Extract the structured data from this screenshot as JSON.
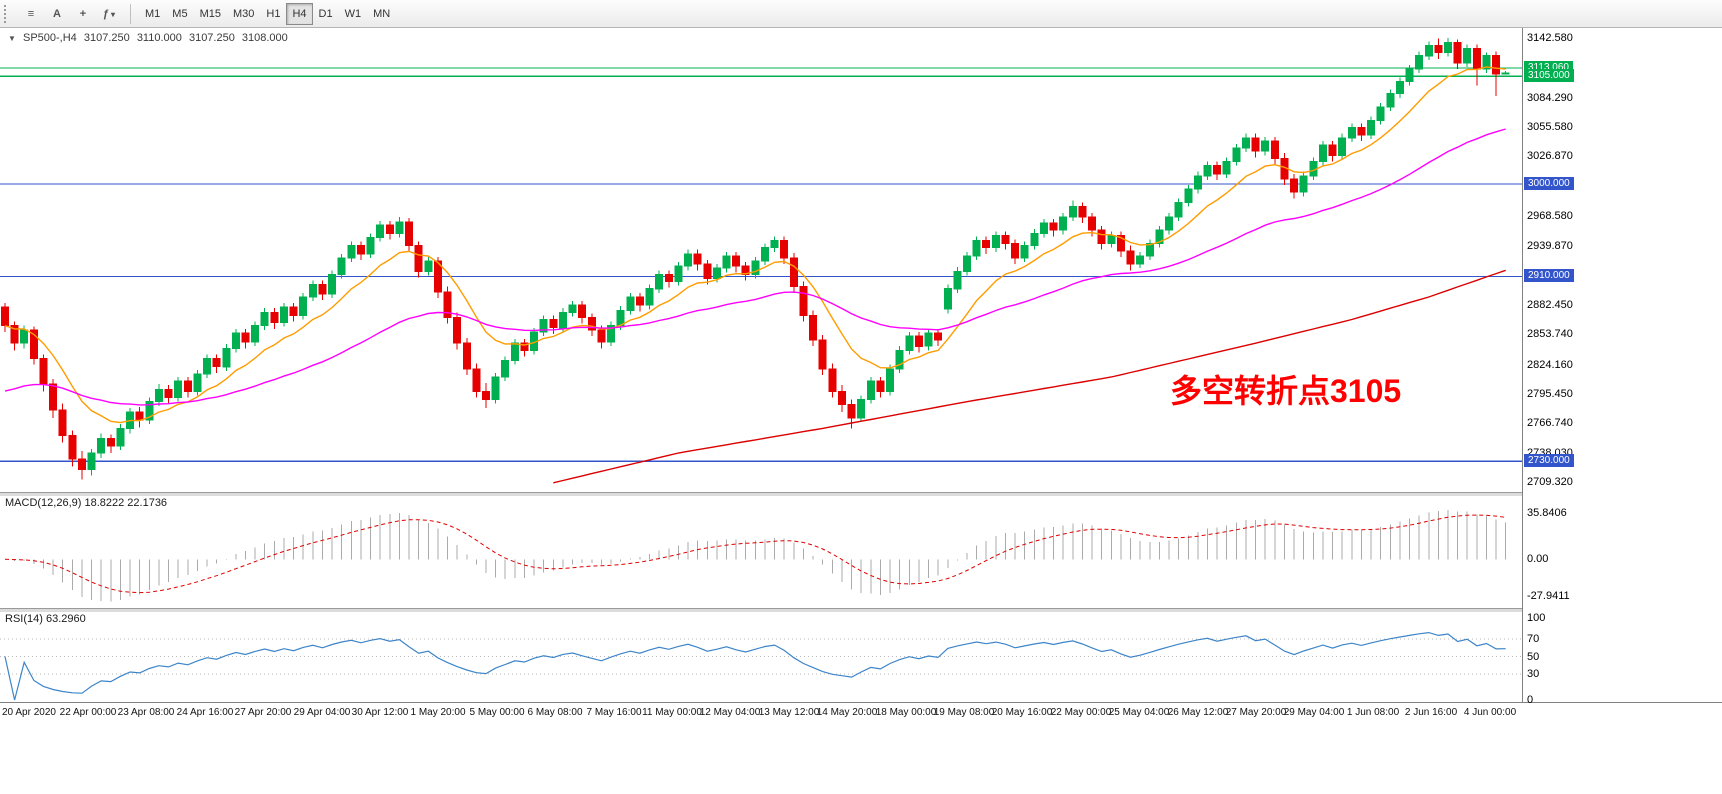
{
  "toolbar": {
    "icons": [
      {
        "name": "chart-list-icon",
        "glyph": "≡"
      },
      {
        "name": "text-tool-icon",
        "glyph": "A"
      },
      {
        "name": "crosshair-icon",
        "glyph": "+"
      },
      {
        "name": "indicators-icon",
        "glyph": "ƒ",
        "caret": "▾"
      }
    ],
    "timeframes": [
      "M1",
      "M5",
      "M15",
      "M30",
      "H1",
      "H4",
      "D1",
      "W1",
      "MN"
    ],
    "active_timeframe": "H4"
  },
  "quote_header": {
    "collapse_glyph": "▼",
    "symbol": "SP500-,H4",
    "open": "3107.250",
    "high": "3110.000",
    "low": "3107.250",
    "close": "3108.000"
  },
  "annotation": {
    "text": "多空转折点3105",
    "color": "#ff0000"
  },
  "indicator_labels": {
    "macd": "MACD(12,26,9) 18.8222 22.1736",
    "rsi": "RSI(14) 63.2960"
  },
  "price_scale": {
    "grid_labels": [
      "3142.580",
      "3084.290",
      "3055.580",
      "3026.870",
      "2968.580",
      "2939.870",
      "2882.450",
      "2853.740",
      "2824.160",
      "2795.450",
      "2766.740",
      "2738.030",
      "2709.320"
    ],
    "line_badges": [
      {
        "label": "3113.060",
        "price": 3113.06,
        "color": "#00b050"
      },
      {
        "label": "3105.000",
        "price": 3105.0,
        "color": "#00b050"
      },
      {
        "label": "3000.000",
        "price": 3000.0,
        "color": "#3355cc"
      },
      {
        "label": "2910.000",
        "price": 2910.0,
        "color": "#3355cc"
      },
      {
        "label": "2730.000",
        "price": 2730.0,
        "color": "#3355cc"
      }
    ]
  },
  "time_axis": {
    "labels": [
      "20 Apr 2020",
      "22 Apr 00:00",
      "23 Apr 08:00",
      "24 Apr 16:00",
      "27 Apr 20:00",
      "29 Apr 04:00",
      "30 Apr 12:00",
      "1 May 20:00",
      "5 May 00:00",
      "6 May 08:00",
      "7 May 16:00",
      "11 May 00:00",
      "12 May 04:00",
      "13 May 12:00",
      "14 May 20:00",
      "18 May 00:00",
      "19 May 08:00",
      "20 May 16:00",
      "22 May 00:00",
      "25 May 04:00",
      "26 May 12:00",
      "27 May 20:00",
      "29 May 04:00",
      "1 Jun 08:00",
      "2 Jun 16:00",
      "4 Jun 00:00"
    ]
  },
  "chart_data": {
    "type": "candlestick",
    "title": "SP500-,H4",
    "timeframe": "H4",
    "ylim": [
      2700,
      3152
    ],
    "up_color": "#00b050",
    "down_color": "#e60000",
    "hlines": [
      {
        "price": 3113.06,
        "color": "#00b050"
      },
      {
        "price": 3105.0,
        "color": "#00b050"
      },
      {
        "price": 3000.0,
        "color": "#3355cc"
      },
      {
        "price": 2910.0,
        "color": "#3355cc"
      },
      {
        "price": 2730.0,
        "color": "#3355cc"
      }
    ],
    "moving_averages": [
      {
        "name": "ma-fast-orange",
        "color": "#ff9c00",
        "period": 10
      },
      {
        "name": "ma-mid-magenta",
        "color": "#ff00ff",
        "period": 40,
        "seed": 2795
      },
      {
        "name": "ma-slow-red",
        "color": "#dc0000",
        "anchors": [
          [
            57,
            2709
          ],
          [
            70,
            2738
          ],
          [
            85,
            2762
          ],
          [
            100,
            2788
          ],
          [
            115,
            2812
          ],
          [
            130,
            2845
          ],
          [
            140,
            2868
          ],
          [
            148,
            2890
          ],
          [
            156,
            2916
          ]
        ]
      }
    ],
    "candles": [
      [
        2880,
        2884,
        2856,
        2862
      ],
      [
        2862,
        2866,
        2838,
        2845
      ],
      [
        2845,
        2862,
        2840,
        2858
      ],
      [
        2858,
        2861,
        2824,
        2830
      ],
      [
        2830,
        2834,
        2798,
        2805
      ],
      [
        2805,
        2810,
        2772,
        2780
      ],
      [
        2780,
        2786,
        2748,
        2755
      ],
      [
        2755,
        2760,
        2725,
        2732
      ],
      [
        2732,
        2740,
        2712,
        2722
      ],
      [
        2722,
        2742,
        2716,
        2738
      ],
      [
        2738,
        2757,
        2733,
        2752
      ],
      [
        2752,
        2756,
        2738,
        2745
      ],
      [
        2745,
        2766,
        2741,
        2762
      ],
      [
        2762,
        2782,
        2757,
        2778
      ],
      [
        2778,
        2783,
        2763,
        2770
      ],
      [
        2770,
        2792,
        2766,
        2788
      ],
      [
        2788,
        2805,
        2784,
        2800
      ],
      [
        2800,
        2804,
        2786,
        2792
      ],
      [
        2792,
        2812,
        2788,
        2808
      ],
      [
        2808,
        2812,
        2792,
        2798
      ],
      [
        2798,
        2819,
        2794,
        2815
      ],
      [
        2815,
        2834,
        2811,
        2830
      ],
      [
        2830,
        2834,
        2816,
        2822
      ],
      [
        2822,
        2844,
        2818,
        2840
      ],
      [
        2840,
        2859,
        2836,
        2855
      ],
      [
        2855,
        2859,
        2840,
        2846
      ],
      [
        2846,
        2866,
        2842,
        2862
      ],
      [
        2862,
        2879,
        2858,
        2875
      ],
      [
        2875,
        2879,
        2859,
        2865
      ],
      [
        2865,
        2884,
        2861,
        2880
      ],
      [
        2880,
        2884,
        2866,
        2872
      ],
      [
        2872,
        2894,
        2868,
        2890
      ],
      [
        2890,
        2906,
        2886,
        2902
      ],
      [
        2902,
        2906,
        2887,
        2893
      ],
      [
        2893,
        2916,
        2889,
        2912
      ],
      [
        2912,
        2932,
        2908,
        2928
      ],
      [
        2928,
        2944,
        2924,
        2940
      ],
      [
        2940,
        2944,
        2926,
        2932
      ],
      [
        2932,
        2952,
        2928,
        2948
      ],
      [
        2948,
        2964,
        2944,
        2960
      ],
      [
        2960,
        2964,
        2946,
        2952
      ],
      [
        2952,
        2968,
        2948,
        2963
      ],
      [
        2963,
        2967,
        2934,
        2940
      ],
      [
        2940,
        2944,
        2909,
        2915
      ],
      [
        2915,
        2929,
        2911,
        2925
      ],
      [
        2925,
        2929,
        2889,
        2895
      ],
      [
        2895,
        2900,
        2864,
        2870
      ],
      [
        2870,
        2875,
        2839,
        2845
      ],
      [
        2845,
        2850,
        2814,
        2820
      ],
      [
        2820,
        2825,
        2792,
        2798
      ],
      [
        2798,
        2806,
        2782,
        2790
      ],
      [
        2790,
        2816,
        2786,
        2812
      ],
      [
        2812,
        2832,
        2808,
        2828
      ],
      [
        2828,
        2849,
        2824,
        2845
      ],
      [
        2845,
        2849,
        2832,
        2838
      ],
      [
        2838,
        2860,
        2834,
        2856
      ],
      [
        2856,
        2872,
        2852,
        2868
      ],
      [
        2868,
        2872,
        2854,
        2860
      ],
      [
        2860,
        2879,
        2856,
        2875
      ],
      [
        2875,
        2886,
        2871,
        2882
      ],
      [
        2882,
        2886,
        2864,
        2870
      ],
      [
        2870,
        2874,
        2852,
        2858
      ],
      [
        2858,
        2862,
        2840,
        2846
      ],
      [
        2846,
        2866,
        2842,
        2862
      ],
      [
        2862,
        2881,
        2858,
        2877
      ],
      [
        2877,
        2894,
        2873,
        2890
      ],
      [
        2890,
        2894,
        2876,
        2882
      ],
      [
        2882,
        2902,
        2878,
        2898
      ],
      [
        2898,
        2916,
        2894,
        2912
      ],
      [
        2912,
        2916,
        2899,
        2905
      ],
      [
        2905,
        2924,
        2901,
        2920
      ],
      [
        2920,
        2936,
        2916,
        2932
      ],
      [
        2932,
        2936,
        2916,
        2922
      ],
      [
        2922,
        2926,
        2902,
        2908
      ],
      [
        2908,
        2922,
        2904,
        2918
      ],
      [
        2918,
        2934,
        2914,
        2930
      ],
      [
        2930,
        2934,
        2914,
        2920
      ],
      [
        2920,
        2924,
        2906,
        2912
      ],
      [
        2912,
        2929,
        2908,
        2925
      ],
      [
        2925,
        2942,
        2921,
        2938
      ],
      [
        2938,
        2949,
        2934,
        2945
      ],
      [
        2945,
        2949,
        2922,
        2928
      ],
      [
        2928,
        2933,
        2894,
        2900
      ],
      [
        2900,
        2905,
        2866,
        2872
      ],
      [
        2872,
        2877,
        2842,
        2848
      ],
      [
        2848,
        2853,
        2814,
        2820
      ],
      [
        2820,
        2825,
        2792,
        2798
      ],
      [
        2798,
        2804,
        2778,
        2785
      ],
      [
        2785,
        2790,
        2762,
        2772
      ],
      [
        2772,
        2794,
        2768,
        2790
      ],
      [
        2790,
        2812,
        2786,
        2808
      ],
      [
        2808,
        2812,
        2792,
        2798
      ],
      [
        2798,
        2824,
        2794,
        2820
      ],
      [
        2820,
        2842,
        2816,
        2838
      ],
      [
        2838,
        2856,
        2834,
        2852
      ],
      [
        2852,
        2856,
        2836,
        2842
      ],
      [
        2842,
        2859,
        2838,
        2855
      ],
      [
        2855,
        2859,
        2842,
        2848
      ],
      [
        2878,
        2902,
        2874,
        2898
      ],
      [
        2898,
        2919,
        2894,
        2915
      ],
      [
        2915,
        2934,
        2911,
        2930
      ],
      [
        2930,
        2949,
        2926,
        2945
      ],
      [
        2945,
        2949,
        2932,
        2938
      ],
      [
        2938,
        2954,
        2934,
        2950
      ],
      [
        2950,
        2954,
        2936,
        2942
      ],
      [
        2942,
        2946,
        2922,
        2928
      ],
      [
        2928,
        2944,
        2924,
        2940
      ],
      [
        2940,
        2956,
        2936,
        2952
      ],
      [
        2952,
        2966,
        2948,
        2962
      ],
      [
        2962,
        2966,
        2949,
        2955
      ],
      [
        2955,
        2972,
        2951,
        2968
      ],
      [
        2968,
        2984,
        2964,
        2978
      ],
      [
        2978,
        2982,
        2962,
        2968
      ],
      [
        2968,
        2972,
        2949,
        2955
      ],
      [
        2955,
        2959,
        2936,
        2942
      ],
      [
        2942,
        2954,
        2938,
        2950
      ],
      [
        2950,
        2954,
        2929,
        2935
      ],
      [
        2935,
        2940,
        2916,
        2922
      ],
      [
        2922,
        2934,
        2918,
        2930
      ],
      [
        2930,
        2946,
        2926,
        2942
      ],
      [
        2942,
        2959,
        2938,
        2955
      ],
      [
        2955,
        2972,
        2951,
        2968
      ],
      [
        2968,
        2986,
        2964,
        2982
      ],
      [
        2982,
        2999,
        2978,
        2995
      ],
      [
        2995,
        3012,
        2991,
        3008
      ],
      [
        3008,
        3022,
        3004,
        3018
      ],
      [
        3018,
        3022,
        3004,
        3010
      ],
      [
        3010,
        3026,
        3006,
        3022
      ],
      [
        3022,
        3039,
        3018,
        3035
      ],
      [
        3035,
        3049,
        3031,
        3045
      ],
      [
        3045,
        3049,
        3026,
        3032
      ],
      [
        3032,
        3046,
        3028,
        3042
      ],
      [
        3042,
        3046,
        3019,
        3025
      ],
      [
        3025,
        3030,
        2999,
        3005
      ],
      [
        3005,
        3010,
        2986,
        2992
      ],
      [
        2992,
        3012,
        2988,
        3008
      ],
      [
        3008,
        3026,
        3004,
        3022
      ],
      [
        3022,
        3042,
        3018,
        3038
      ],
      [
        3038,
        3042,
        3022,
        3028
      ],
      [
        3028,
        3049,
        3024,
        3045
      ],
      [
        3045,
        3059,
        3041,
        3055
      ],
      [
        3055,
        3059,
        3042,
        3048
      ],
      [
        3048,
        3066,
        3044,
        3062
      ],
      [
        3062,
        3079,
        3058,
        3075
      ],
      [
        3075,
        3092,
        3071,
        3088
      ],
      [
        3088,
        3104,
        3084,
        3100
      ],
      [
        3100,
        3116,
        3096,
        3112
      ],
      [
        3112,
        3129,
        3108,
        3125
      ],
      [
        3125,
        3139,
        3121,
        3135
      ],
      [
        3135,
        3142,
        3122,
        3128
      ],
      [
        3128,
        3142.5,
        3124,
        3138
      ],
      [
        3138,
        3141,
        3112,
        3118
      ],
      [
        3118,
        3136,
        3114,
        3132
      ],
      [
        3132,
        3136,
        3096,
        3112
      ],
      [
        3112,
        3128,
        3108,
        3125
      ],
      [
        3125,
        3129,
        3086,
        3107
      ],
      [
        3107.25,
        3110,
        3107.25,
        3108
      ]
    ],
    "macd": {
      "params": [
        12,
        26,
        9
      ],
      "value": "18.8222",
      "signal": "22.1736",
      "range": [
        48,
        -36
      ],
      "hist_color": "#ababab",
      "signal_color": "#e00000",
      "scale_labels": [
        {
          "v": 35.8406,
          "label": "35.8406"
        },
        {
          "v": 0,
          "label": "0.00"
        },
        {
          "v": -27.9411,
          "label": "-27.9411"
        }
      ]
    },
    "rsi": {
      "period": 14,
      "value": "63.2960",
      "color": "#3d85c8",
      "levels": [
        70,
        50,
        30
      ],
      "scale_labels": [
        "100",
        "70",
        "50",
        "30",
        "0"
      ]
    }
  }
}
